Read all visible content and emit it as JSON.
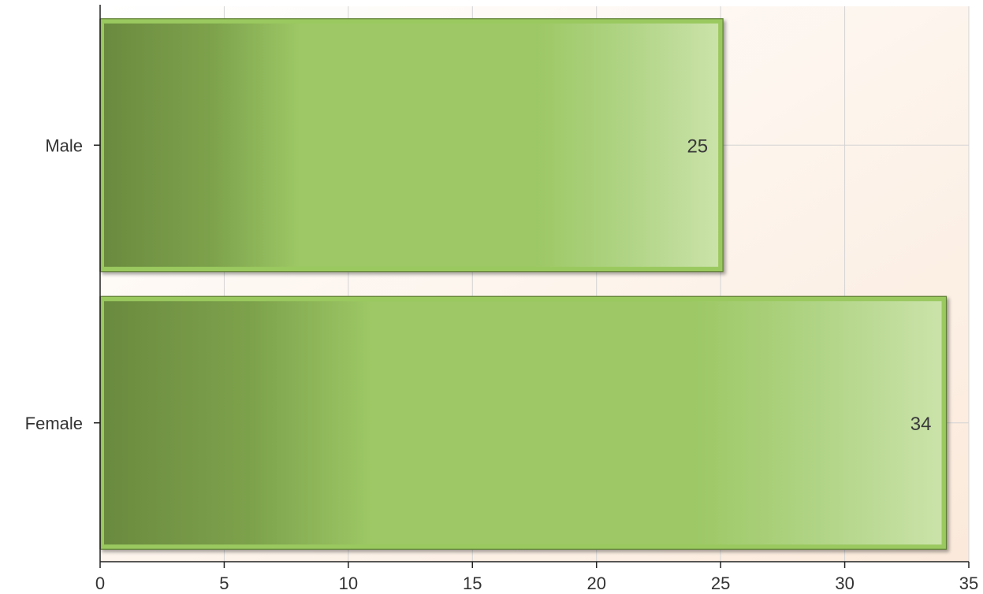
{
  "chart_data": {
    "type": "bar",
    "orientation": "horizontal",
    "categories": [
      "Male",
      "Female"
    ],
    "values": [
      25,
      34
    ],
    "data_labels": [
      "25",
      "34"
    ],
    "xlim": [
      0,
      35
    ],
    "x_ticks": [
      0,
      5,
      10,
      15,
      20,
      25,
      30,
      35
    ],
    "x_tick_labels": [
      "0",
      "5",
      "10",
      "15",
      "20",
      "25",
      "30",
      "35"
    ],
    "grid": true,
    "legend": "none",
    "title": "",
    "xlabel": "",
    "ylabel": "",
    "colors": {
      "bar_dark": "#6a8a3e",
      "bar_mid": "#9dc865",
      "bar_light": "#cbe3aa",
      "bar_border": "#9ac95f",
      "plot_bg_top": "#ffffff",
      "plot_bg_bottom": "#fbeadb",
      "grid": "#d4d4d4",
      "axis": "#222222"
    }
  }
}
